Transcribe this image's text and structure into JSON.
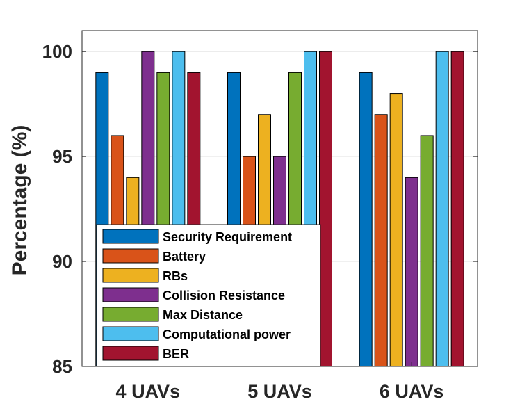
{
  "chart_data": {
    "type": "bar",
    "title": "",
    "xlabel": "",
    "ylabel": "Percentage (%)",
    "ylim": [
      85,
      101
    ],
    "yticks": [
      85,
      90,
      95,
      100
    ],
    "grid": true,
    "legend_position": "bottom-left",
    "categories": [
      "4 UAVs",
      "5 UAVs",
      "6 UAVs"
    ],
    "series": [
      {
        "name": "Security Requirement",
        "color": "#0072BD",
        "values": [
          99,
          99,
          99
        ]
      },
      {
        "name": "Battery",
        "color": "#D95319",
        "values": [
          96,
          95,
          97
        ]
      },
      {
        "name": "RBs",
        "color": "#EDB120",
        "values": [
          94,
          97,
          98
        ]
      },
      {
        "name": "Collision Resistance",
        "color": "#7E2F8E",
        "values": [
          100,
          95,
          94
        ]
      },
      {
        "name": "Max Distance",
        "color": "#77AC30",
        "values": [
          99,
          99,
          96
        ]
      },
      {
        "name": "Computational power",
        "color": "#4DBEEE",
        "values": [
          100,
          100,
          100
        ]
      },
      {
        "name": "BER",
        "color": "#A2142F",
        "values": [
          99,
          100,
          100
        ]
      }
    ]
  }
}
